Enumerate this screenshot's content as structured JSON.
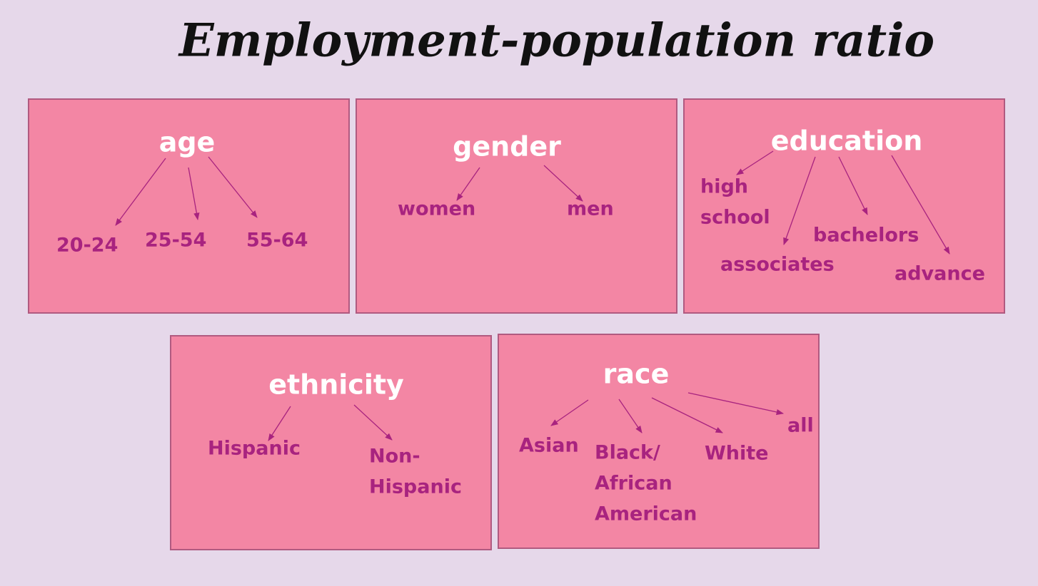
{
  "title": "Employment-population ratio",
  "panels": [
    {
      "label": "age",
      "children": [
        [
          "20-24"
        ],
        [
          "25-54"
        ],
        [
          "55-64"
        ]
      ]
    },
    {
      "label": "gender",
      "children": [
        [
          "women"
        ],
        [
          "men"
        ]
      ]
    },
    {
      "label": "education",
      "children": [
        [
          "high",
          "school"
        ],
        [
          "associates"
        ],
        [
          "bachelors"
        ],
        [
          "advance"
        ]
      ]
    },
    {
      "label": "ethnicity",
      "children": [
        [
          "Hispanic"
        ],
        [
          "Non-",
          "Hispanic"
        ]
      ]
    },
    {
      "label": "race",
      "children": [
        [
          "Asian"
        ],
        [
          "Black/",
          "African",
          "American"
        ],
        [
          "White"
        ],
        [
          "all"
        ]
      ]
    }
  ]
}
